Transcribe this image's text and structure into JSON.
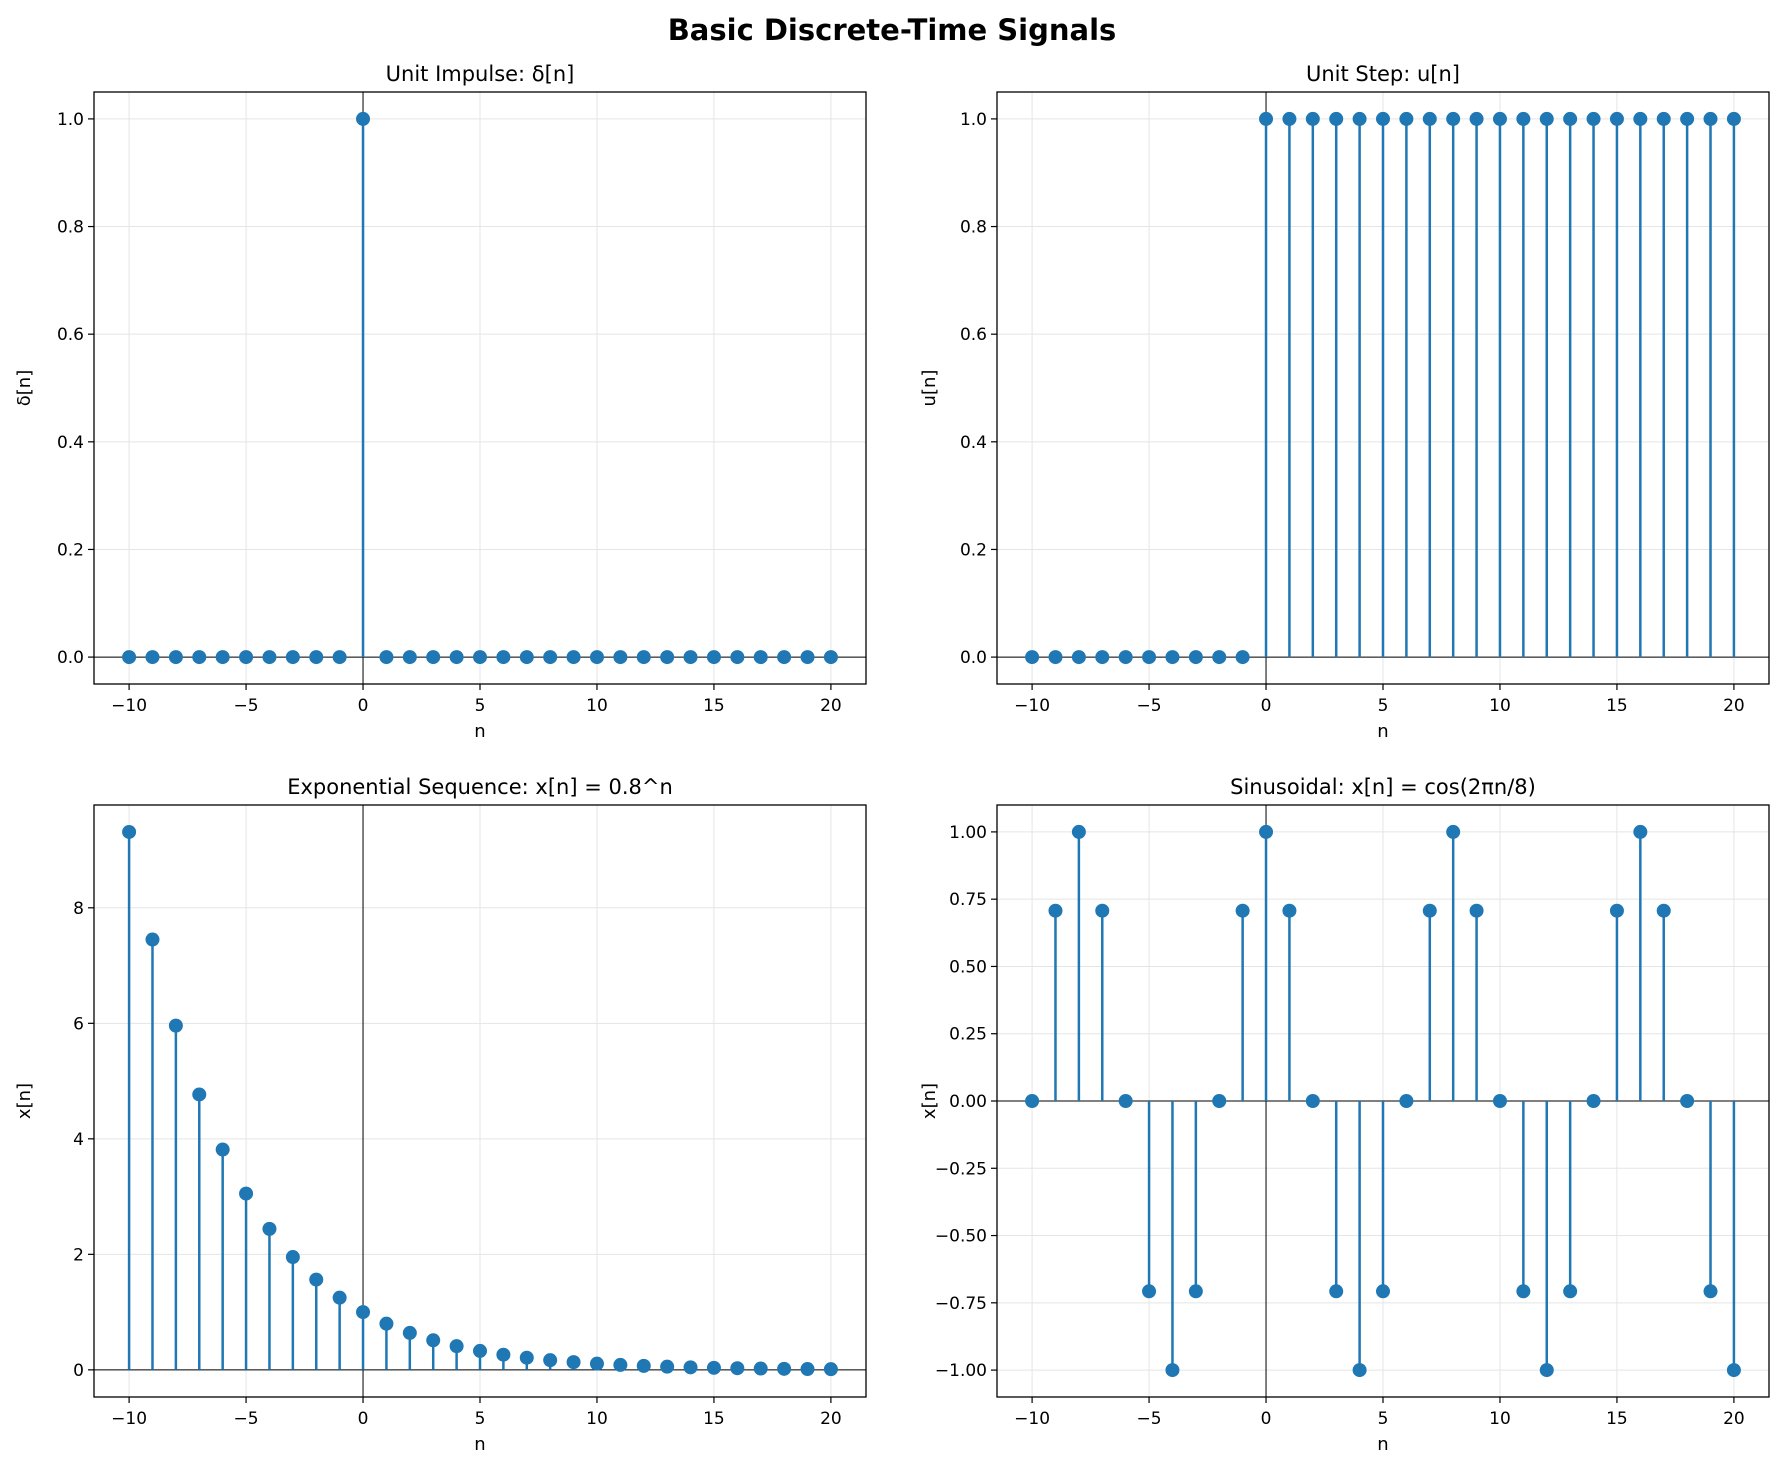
{
  "figure": {
    "title": "Basic Discrete-Time Signals"
  },
  "colors": {
    "stem": "#1f77b4",
    "axis": "#000000",
    "grid": "#e5e5e5",
    "baseline": "#000000"
  },
  "chart_data": [
    {
      "type": "stem",
      "title": "Unit Impulse: δ[n]",
      "xlabel": "n",
      "ylabel": "δ[n]",
      "xlim": [
        -11.5,
        21.5
      ],
      "ylim": [
        -0.05,
        1.05
      ],
      "xticks": [
        -10,
        -5,
        0,
        5,
        10,
        15,
        20
      ],
      "xtick_labels": [
        "−10",
        "−5",
        "0",
        "5",
        "10",
        "15",
        "20"
      ],
      "yticks": [
        0.0,
        0.2,
        0.4,
        0.6,
        0.8,
        1.0
      ],
      "ytick_labels": [
        "0.0",
        "0.2",
        "0.4",
        "0.6",
        "0.8",
        "1.0"
      ],
      "grid": true,
      "x": [
        -10,
        -9,
        -8,
        -7,
        -6,
        -5,
        -4,
        -3,
        -2,
        -1,
        0,
        1,
        2,
        3,
        4,
        5,
        6,
        7,
        8,
        9,
        10,
        11,
        12,
        13,
        14,
        15,
        16,
        17,
        18,
        19,
        20
      ],
      "values": [
        0,
        0,
        0,
        0,
        0,
        0,
        0,
        0,
        0,
        0,
        1,
        0,
        0,
        0,
        0,
        0,
        0,
        0,
        0,
        0,
        0,
        0,
        0,
        0,
        0,
        0,
        0,
        0,
        0,
        0,
        0
      ]
    },
    {
      "type": "stem",
      "title": "Unit Step: u[n]",
      "xlabel": "n",
      "ylabel": "u[n]",
      "xlim": [
        -11.5,
        21.5
      ],
      "ylim": [
        -0.05,
        1.05
      ],
      "xticks": [
        -10,
        -5,
        0,
        5,
        10,
        15,
        20
      ],
      "xtick_labels": [
        "−10",
        "−5",
        "0",
        "5",
        "10",
        "15",
        "20"
      ],
      "yticks": [
        0.0,
        0.2,
        0.4,
        0.6,
        0.8,
        1.0
      ],
      "ytick_labels": [
        "0.0",
        "0.2",
        "0.4",
        "0.6",
        "0.8",
        "1.0"
      ],
      "grid": true,
      "x": [
        -10,
        -9,
        -8,
        -7,
        -6,
        -5,
        -4,
        -3,
        -2,
        -1,
        0,
        1,
        2,
        3,
        4,
        5,
        6,
        7,
        8,
        9,
        10,
        11,
        12,
        13,
        14,
        15,
        16,
        17,
        18,
        19,
        20
      ],
      "values": [
        0,
        0,
        0,
        0,
        0,
        0,
        0,
        0,
        0,
        0,
        1,
        1,
        1,
        1,
        1,
        1,
        1,
        1,
        1,
        1,
        1,
        1,
        1,
        1,
        1,
        1,
        1,
        1,
        1,
        1,
        1
      ]
    },
    {
      "type": "stem",
      "title": "Exponential Sequence: x[n] = 0.8^n",
      "xlabel": "n",
      "ylabel": "x[n]",
      "xlim": [
        -11.5,
        21.5
      ],
      "ylim": [
        -0.47,
        9.78
      ],
      "xticks": [
        -10,
        -5,
        0,
        5,
        10,
        15,
        20
      ],
      "xtick_labels": [
        "−10",
        "−5",
        "0",
        "5",
        "10",
        "15",
        "20"
      ],
      "yticks": [
        0,
        2,
        4,
        6,
        8
      ],
      "ytick_labels": [
        "0",
        "2",
        "4",
        "6",
        "8"
      ],
      "grid": true,
      "x": [
        -10,
        -9,
        -8,
        -7,
        -6,
        -5,
        -4,
        -3,
        -2,
        -1,
        0,
        1,
        2,
        3,
        4,
        5,
        6,
        7,
        8,
        9,
        10,
        11,
        12,
        13,
        14,
        15,
        16,
        17,
        18,
        19,
        20
      ],
      "values": [
        9.313,
        7.451,
        5.96,
        4.768,
        3.815,
        3.052,
        2.441,
        1.953,
        1.563,
        1.25,
        1.0,
        0.8,
        0.64,
        0.512,
        0.41,
        0.328,
        0.262,
        0.21,
        0.168,
        0.134,
        0.107,
        0.086,
        0.069,
        0.055,
        0.044,
        0.035,
        0.028,
        0.023,
        0.018,
        0.014,
        0.012
      ]
    },
    {
      "type": "stem",
      "title": "Sinusoidal: x[n] = cos(2πn/8)",
      "xlabel": "n",
      "ylabel": "x[n]",
      "xlim": [
        -11.5,
        21.5
      ],
      "ylim": [
        -1.1,
        1.1
      ],
      "xticks": [
        -10,
        -5,
        0,
        5,
        10,
        15,
        20
      ],
      "xtick_labels": [
        "−10",
        "−5",
        "0",
        "5",
        "10",
        "15",
        "20"
      ],
      "yticks": [
        -1.0,
        -0.75,
        -0.5,
        -0.25,
        0.0,
        0.25,
        0.5,
        0.75,
        1.0
      ],
      "ytick_labels": [
        "−1.00",
        "−0.75",
        "−0.50",
        "−0.25",
        "0.00",
        "0.25",
        "0.50",
        "0.75",
        "1.00"
      ],
      "grid": true,
      "x": [
        -10,
        -9,
        -8,
        -7,
        -6,
        -5,
        -4,
        -3,
        -2,
        -1,
        0,
        1,
        2,
        3,
        4,
        5,
        6,
        7,
        8,
        9,
        10,
        11,
        12,
        13,
        14,
        15,
        16,
        17,
        18,
        19,
        20
      ],
      "values": [
        0,
        0.7071,
        1,
        0.7071,
        0,
        -0.7071,
        -1,
        -0.7071,
        0,
        0.7071,
        1,
        0.7071,
        0,
        -0.7071,
        -1,
        -0.7071,
        0,
        0.7071,
        1,
        0.7071,
        0,
        -0.7071,
        -1,
        -0.7071,
        0,
        0.7071,
        1,
        0.7071,
        0,
        -0.7071,
        -1
      ]
    }
  ]
}
